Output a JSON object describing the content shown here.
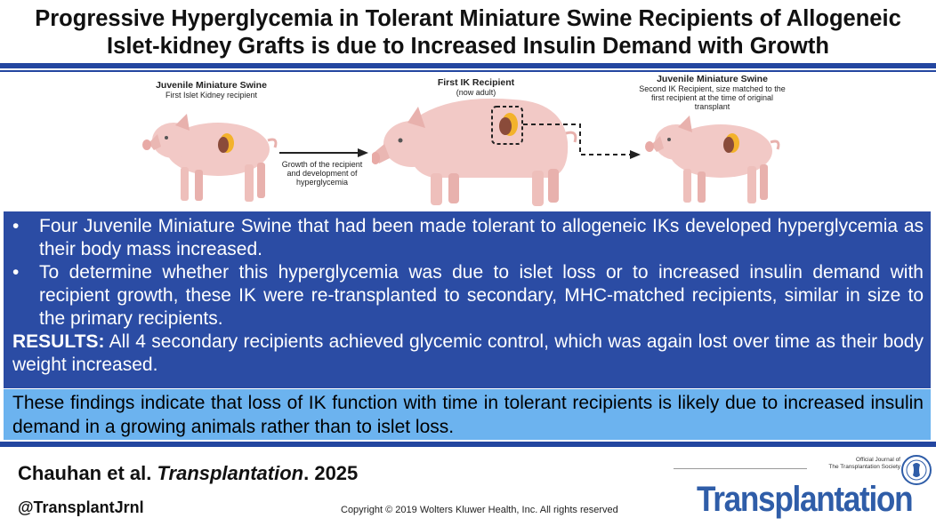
{
  "header": {
    "title_line1": "Progressive Hyperglycemia in Tolerant Miniature Swine Recipients of Allogeneic",
    "title_line2": "Islet-kidney Grafts is due to Increased Insulin Demand with Growth"
  },
  "figure": {
    "panel1": {
      "title": "Juvenile Miniature Swine",
      "subtitle": "First Islet Kidney recipient"
    },
    "arrow_label": "Growth of the recipient and development of hyperglycemia",
    "panel2": {
      "title": "First IK Recipient",
      "subtitle": "(now adult)"
    },
    "panel3": {
      "title": "Juvenile Miniature Swine",
      "subtitle": "Second IK Recipient, size matched to the first recipient at the time of original transplant"
    }
  },
  "body": {
    "bullet1": "Four Juvenile Miniature Swine that had been made tolerant to allogeneic IKs developed hyperglycemia as their body mass increased.",
    "bullet2": "To determine whether this hyperglycemia was due to islet loss or to increased insulin demand with recipient growth, these IK were re-transplanted to secondary, MHC-matched recipients, similar in size to the primary recipients.",
    "results_label": "RESULTS:",
    "results_text": " All 4 secondary recipients achieved glycemic control, which was again lost over time as their body weight increased.",
    "conclusion": "These findings indicate that loss of IK function with time in tolerant recipients is likely due to increased insulin demand in a growing animals rather than to islet loss."
  },
  "footer": {
    "citation_authors": "Chauhan et al. ",
    "citation_journal": "Transplantation",
    "citation_year": ". 2025",
    "handle": "@TransplantJrnl",
    "copyright": "Copyright © 2019  Wolters Kluwer Health, Inc. All rights reserved",
    "official_line1": "Official Journal of",
    "official_line2": "The Transplantation Society",
    "brand": "Transplantation"
  },
  "colors": {
    "rule_blue": "#2346a0",
    "box_blue": "#2b4ca4",
    "box_light": "#6cb3ef",
    "brand_blue": "#2f5da8",
    "pig_pink": "#f2c9c6"
  },
  "icons": [
    "pig-illustration",
    "kidney-islet-icon",
    "arrow-right-icon",
    "dashed-arrow-icon",
    "society-seal-icon"
  ]
}
